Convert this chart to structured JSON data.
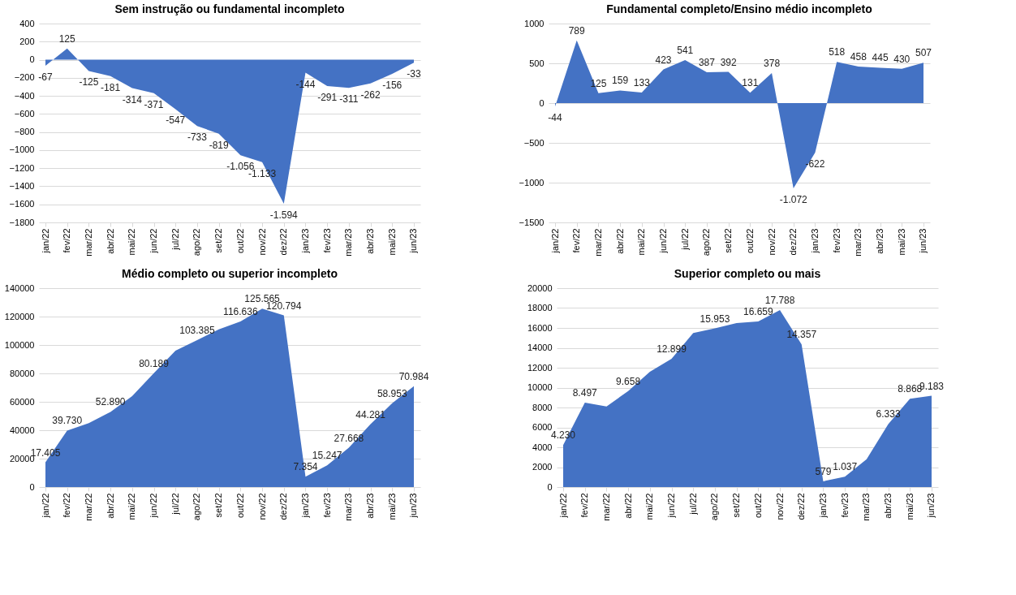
{
  "chart_data": [
    {
      "type": "area",
      "title": "Sem instrução ou fundamental incompleto",
      "categories": [
        "jan/22",
        "fev/22",
        "mar/22",
        "abr/22",
        "mai/22",
        "jun/22",
        "jul/22",
        "ago/22",
        "set/22",
        "out/22",
        "nov/22",
        "dez/22",
        "jan/23",
        "fev/23",
        "mar/23",
        "abr/23",
        "mai/23",
        "jun/23"
      ],
      "color": "#4472c4",
      "ylim": [
        -1800,
        400
      ],
      "yticks": [
        -1800,
        -1600,
        -1400,
        -1200,
        -1000,
        -800,
        -600,
        -400,
        -200,
        0,
        200,
        400
      ],
      "grid": "y",
      "values": [
        -67,
        125,
        -125,
        -181,
        -314,
        -371,
        -547,
        -733,
        -819,
        -1056,
        -1133,
        -1594,
        -144,
        -291,
        -311,
        -262,
        -156,
        -33
      ],
      "value_labels": [
        "-67",
        "125",
        "-125",
        "-181",
        "-314",
        "-371",
        "-547",
        "-733",
        "-819",
        "-1.056",
        "-1.133",
        "-1.594",
        "-144",
        "-291",
        "-311",
        "-262",
        "-156",
        "-33"
      ]
    },
    {
      "type": "area",
      "title": "Fundamental completo/Ensino médio incompleto",
      "categories": [
        "jan/22",
        "fev/22",
        "mar/22",
        "abr/22",
        "mai/22",
        "jun/22",
        "jul/22",
        "ago/22",
        "set/22",
        "out/22",
        "nov/22",
        "dez/22",
        "jan/23",
        "fev/23",
        "mar/23",
        "abr/23",
        "mai/23",
        "jun/23"
      ],
      "color": "#4472c4",
      "ylim": [
        -1500,
        1000
      ],
      "yticks": [
        -1500,
        -1000,
        -500,
        0,
        500,
        1000
      ],
      "grid": "y",
      "values": [
        -44,
        789,
        125,
        159,
        133,
        423,
        541,
        387,
        392,
        131,
        378,
        -1072,
        -622,
        518,
        458,
        445,
        430,
        507
      ],
      "value_labels": [
        "-44",
        "789",
        "125",
        "159",
        "133",
        "423",
        "541",
        "387",
        "392",
        "131",
        "378",
        "-1.072",
        "-622",
        "518",
        "458",
        "445",
        "430",
        "507"
      ]
    },
    {
      "type": "area",
      "title": "Médio completo ou superior incompleto",
      "categories": [
        "jan/22",
        "fev/22",
        "mar/22",
        "abr/22",
        "mai/22",
        "jun/22",
        "jul/22",
        "ago/22",
        "set/22",
        "out/22",
        "nov/22",
        "dez/22",
        "jan/23",
        "fev/23",
        "mar/23",
        "abr/23",
        "mai/23",
        "jun/23"
      ],
      "color": "#4472c4",
      "ylim": [
        0,
        140000
      ],
      "yticks": [
        0,
        20000,
        40000,
        60000,
        80000,
        100000,
        120000,
        140000
      ],
      "grid": "y",
      "values": [
        17405,
        39730,
        45000,
        52890,
        64000,
        80189,
        96000,
        103385,
        111000,
        116636,
        125565,
        120794,
        7354,
        15247,
        27668,
        44281,
        58953,
        70984
      ],
      "value_labels": [
        "17.405",
        "39.730",
        null,
        "52.890",
        null,
        "80.189",
        null,
        "103.385",
        null,
        "116.636",
        "125.565",
        "120.794",
        "7.354",
        "15.247",
        "27.668",
        "44.281",
        "58.953",
        "70.984"
      ]
    },
    {
      "type": "area",
      "title": "Superior completo ou mais",
      "categories": [
        "jan/22",
        "fev/22",
        "mar/22",
        "abr/22",
        "mai/22",
        "jun/22",
        "jul/22",
        "ago/22",
        "set/22",
        "out/22",
        "nov/22",
        "dez/22",
        "jan/23",
        "fev/23",
        "mar/23",
        "abr/23",
        "mai/23",
        "jun/23"
      ],
      "color": "#4472c4",
      "ylim": [
        0,
        20000
      ],
      "yticks": [
        0,
        2000,
        4000,
        6000,
        8000,
        10000,
        12000,
        14000,
        16000,
        18000,
        20000
      ],
      "grid": "y",
      "values": [
        4230,
        8497,
        8100,
        9658,
        11600,
        12899,
        15500,
        15953,
        16500,
        16659,
        17788,
        14357,
        579,
        1037,
        2800,
        6333,
        8868,
        9183
      ],
      "value_labels": [
        "4.230",
        "8.497",
        null,
        "9.658",
        null,
        "12.899",
        null,
        "15.953",
        null,
        "16.659",
        "17.788",
        "14.357",
        "579",
        "1.037",
        null,
        "6.333",
        "8.868",
        "9.183"
      ]
    }
  ]
}
